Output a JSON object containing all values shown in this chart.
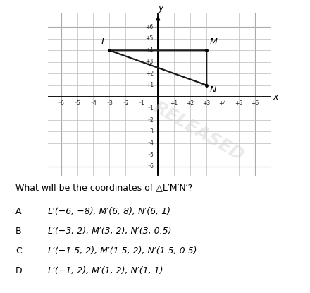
{
  "triangle_vertices": {
    "L": [
      -3,
      4
    ],
    "M": [
      3,
      4
    ],
    "N": [
      3,
      1
    ]
  },
  "triangle_color": "#1a1a1a",
  "triangle_linewidth": 1.6,
  "grid_color": "#bbbbbb",
  "grid_linewidth": 0.5,
  "axis_color": "#000000",
  "vertex_label_fontsize": 9,
  "tick_fontsize": 5.5,
  "axis_label_fontsize": 9,
  "question_text": "What will be the coordinates of △L′M′N′?",
  "choices": [
    [
      "A",
      "L′(−6, −8), M′(6, 8), N′(6, 1)"
    ],
    [
      "B",
      "L′(−3, 2), M′(3, 2), N′(3, 0.5)"
    ],
    [
      "C",
      "L′(−1.5, 2), M′(1.5, 2), N′(1.5, 0.5)"
    ],
    [
      "D",
      "L′(−1, 2), M′(1, 2), N′(1, 1)"
    ]
  ],
  "background_color": "#ffffff",
  "watermark_text": "RELEASED",
  "question_fontsize": 9,
  "choice_fontsize": 9,
  "choice_letter_fontsize": 9
}
